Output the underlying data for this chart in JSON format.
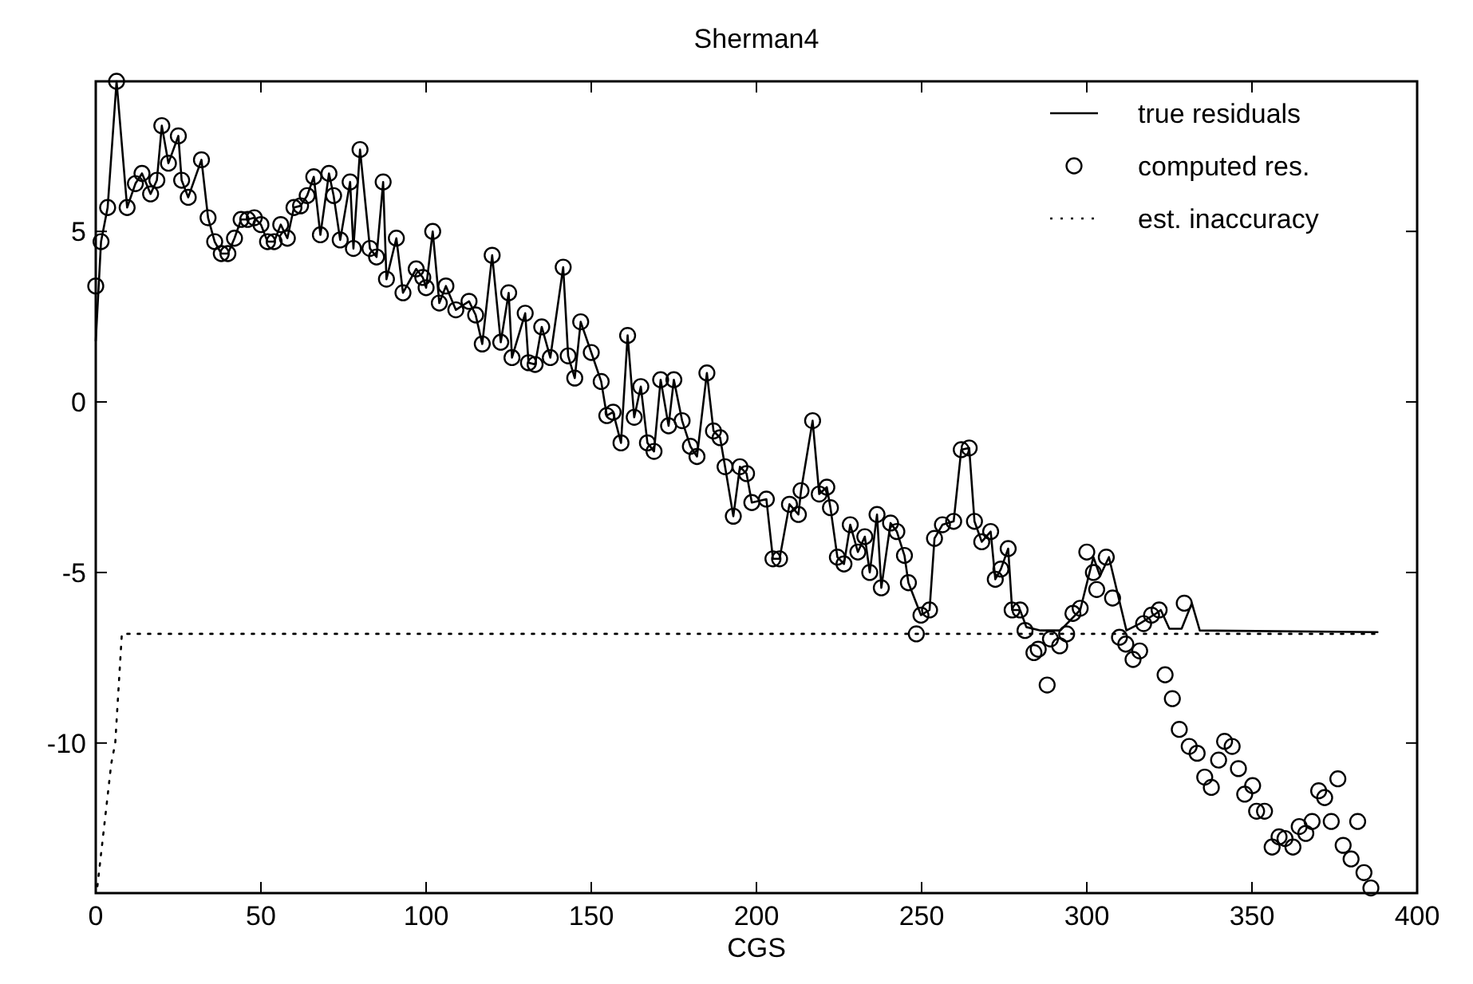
{
  "chart_data": {
    "type": "line",
    "title": "Sherman4",
    "xlabel": "CGS",
    "xlim": [
      0,
      400
    ],
    "ylim": [
      -14.4,
      9.4
    ],
    "xticks": [
      0,
      50,
      100,
      150,
      200,
      250,
      300,
      350,
      400
    ],
    "yticks": [
      -10,
      -5,
      0,
      5
    ],
    "legend": "top right",
    "grid": false,
    "series": [
      {
        "name": "true residuals",
        "type": "line",
        "color": "#000000",
        "line_style": "solid",
        "marker": "none",
        "x": [
          0,
          1.6,
          3.6,
          6.3,
          9.5,
          12,
          14,
          16.6,
          18.5,
          20,
          22,
          25,
          26,
          28,
          32,
          34,
          36,
          38,
          40,
          42,
          44,
          46,
          48,
          50,
          52,
          54,
          56,
          58,
          60,
          62,
          64,
          66,
          68,
          70.6,
          72,
          74,
          77,
          78,
          80,
          83,
          85,
          87,
          88,
          91,
          93,
          97,
          99,
          100,
          102,
          104,
          106,
          109,
          113,
          115,
          117,
          120,
          122.6,
          125,
          126,
          130,
          131,
          133,
          135,
          137.6,
          141.5,
          143,
          145,
          146.8,
          150,
          153,
          154.7,
          156.6,
          159,
          161,
          163,
          165,
          167,
          169,
          171,
          173.4,
          175,
          177.5,
          180,
          182,
          185,
          187,
          189,
          190.5,
          193,
          195,
          197,
          198.6,
          203,
          205,
          207,
          210,
          212.7,
          213.5,
          217,
          219,
          221.3,
          222.4,
          224.5,
          226.5,
          228.4,
          230.7,
          232.8,
          234.3,
          236.5,
          237.8,
          240.6,
          242.5,
          244.8,
          246,
          249.8,
          252.4,
          253.9,
          256.3,
          259.7,
          262,
          264.4,
          266,
          268.2,
          270.9,
          272.3,
          274,
          276.2,
          277.4,
          279.8,
          281.7,
          286,
          292,
          298,
          302,
          304,
          306.7,
          312,
          316,
          321,
          322.4,
          325,
          328.7,
          331.8,
          334.2,
          388
        ],
        "values": [
          1.8,
          4.7,
          5.7,
          9.4,
          5.7,
          6.4,
          6.7,
          6.1,
          6.5,
          8.1,
          7.0,
          7.8,
          6.5,
          6.0,
          7.1,
          5.4,
          4.7,
          4.35,
          4.35,
          4.8,
          5.35,
          5.35,
          5.4,
          5.2,
          4.7,
          4.7,
          5.2,
          4.8,
          5.7,
          5.75,
          6.05,
          6.6,
          4.9,
          6.7,
          6.05,
          4.75,
          6.45,
          4.5,
          7.4,
          4.5,
          4.25,
          6.45,
          3.6,
          4.8,
          3.2,
          3.9,
          3.65,
          3.35,
          5.0,
          2.9,
          3.4,
          2.7,
          2.95,
          2.55,
          1.7,
          4.3,
          1.75,
          3.2,
          1.3,
          2.6,
          1.15,
          1.1,
          2.2,
          1.3,
          3.95,
          1.35,
          0.7,
          2.35,
          1.45,
          0.6,
          -0.4,
          -0.3,
          -1.2,
          1.95,
          -0.45,
          0.45,
          -1.2,
          -1.45,
          0.65,
          -0.7,
          0.65,
          -0.55,
          -1.3,
          -1.6,
          0.85,
          -0.85,
          -1.05,
          -1.9,
          -3.35,
          -1.9,
          -2.1,
          -2.95,
          -2.85,
          -4.6,
          -4.6,
          -3.0,
          -3.3,
          -2.6,
          -0.55,
          -2.7,
          -2.5,
          -3.1,
          -4.55,
          -4.75,
          -3.6,
          -4.4,
          -3.95,
          -5.0,
          -3.3,
          -5.45,
          -3.55,
          -3.8,
          -4.5,
          -5.3,
          -6.25,
          -6.1,
          -4.0,
          -3.6,
          -3.5,
          -1.4,
          -1.35,
          -3.5,
          -4.1,
          -3.8,
          -5.2,
          -4.9,
          -4.3,
          -6.1,
          -6.1,
          -6.6,
          -6.7,
          -6.7,
          -6.1,
          -4.55,
          -5.1,
          -4.55,
          -6.7,
          -6.5,
          -6.2,
          -6.1,
          -6.65,
          -6.65,
          -5.9,
          -6.7,
          -6.75
        ]
      },
      {
        "name": "computed res.",
        "type": "scatter",
        "color": "#000000",
        "marker": "circle",
        "x": [
          0,
          1.6,
          3.6,
          6.3,
          9.5,
          12,
          14,
          16.6,
          18.5,
          20,
          22,
          25,
          26,
          28,
          32,
          34,
          36,
          38,
          40,
          42,
          44,
          46,
          48,
          50,
          52,
          54,
          56,
          58,
          60,
          62,
          64,
          66,
          68,
          70.6,
          72,
          74,
          77,
          78,
          80,
          83,
          85,
          87,
          88,
          91,
          93,
          97,
          99,
          100,
          102,
          104,
          106,
          109,
          113,
          115,
          117,
          120,
          122.6,
          125,
          126,
          130,
          131,
          133,
          135,
          137.6,
          141.5,
          143,
          145,
          146.8,
          150,
          153,
          154.7,
          156.6,
          159,
          161,
          163,
          165,
          167,
          169,
          171,
          173.4,
          175,
          177.5,
          180,
          182,
          185,
          187,
          189,
          190.5,
          193,
          195,
          197,
          198.6,
          203,
          205,
          207,
          210,
          212.7,
          213.5,
          217,
          219,
          221.3,
          222.4,
          224.5,
          226.5,
          228.4,
          230.7,
          232.8,
          234.3,
          236.5,
          237.8,
          240.6,
          242.5,
          244.8,
          246,
          248.4,
          249.8,
          252.4,
          253.9,
          256.3,
          259.7,
          262,
          264.4,
          266,
          268.2,
          270.9,
          272.3,
          274,
          276.2,
          277.4,
          279.8,
          281.3,
          284,
          285.3,
          288,
          289,
          291.8,
          293.9,
          295.8,
          298,
          300,
          302,
          303,
          305.9,
          307.8,
          309.9,
          311.8,
          314,
          316,
          317.2,
          319.6,
          321.9,
          323.7,
          325.9,
          328,
          329.5,
          331,
          333.4,
          335.7,
          337.7,
          339.9,
          341.7,
          344,
          345.9,
          347.8,
          350.2,
          351.4,
          353.8,
          356.1,
          358.2,
          360,
          362.4,
          364.3,
          366.3,
          368.2,
          370.2,
          372,
          374,
          376,
          377.6,
          380,
          382,
          383.9,
          386
        ],
        "values": [
          3.4,
          4.7,
          5.7,
          9.4,
          5.7,
          6.4,
          6.7,
          6.1,
          6.5,
          8.1,
          7.0,
          7.8,
          6.5,
          6.0,
          7.1,
          5.4,
          4.7,
          4.35,
          4.35,
          4.8,
          5.35,
          5.35,
          5.4,
          5.2,
          4.7,
          4.7,
          5.2,
          4.8,
          5.7,
          5.75,
          6.05,
          6.6,
          4.9,
          6.7,
          6.05,
          4.75,
          6.45,
          4.5,
          7.4,
          4.5,
          4.25,
          6.45,
          3.6,
          4.8,
          3.2,
          3.9,
          3.65,
          3.35,
          5.0,
          2.9,
          3.4,
          2.7,
          2.95,
          2.55,
          1.7,
          4.3,
          1.75,
          3.2,
          1.3,
          2.6,
          1.15,
          1.1,
          2.2,
          1.3,
          3.95,
          1.35,
          0.7,
          2.35,
          1.45,
          0.6,
          -0.4,
          -0.3,
          -1.2,
          1.95,
          -0.45,
          0.45,
          -1.2,
          -1.45,
          0.65,
          -0.7,
          0.65,
          -0.55,
          -1.3,
          -1.6,
          0.85,
          -0.85,
          -1.05,
          -1.9,
          -3.35,
          -1.9,
          -2.1,
          -2.95,
          -2.85,
          -4.6,
          -4.6,
          -3.0,
          -3.3,
          -2.6,
          -0.55,
          -2.7,
          -2.5,
          -3.1,
          -4.55,
          -4.75,
          -3.6,
          -4.4,
          -3.95,
          -5.0,
          -3.3,
          -5.45,
          -3.55,
          -3.8,
          -4.5,
          -5.3,
          -6.8,
          -6.25,
          -6.1,
          -4.0,
          -3.6,
          -3.5,
          -1.4,
          -1.35,
          -3.5,
          -4.1,
          -3.8,
          -5.2,
          -4.9,
          -4.3,
          -6.1,
          -6.1,
          -6.7,
          -7.35,
          -7.25,
          -8.3,
          -6.95,
          -7.15,
          -6.8,
          -6.2,
          -6.05,
          -4.4,
          -5.0,
          -5.5,
          -4.55,
          -5.75,
          -6.9,
          -7.1,
          -7.55,
          -7.3,
          -6.5,
          -6.25,
          -6.1,
          -8.0,
          -8.7,
          -9.6,
          -5.9,
          -10.1,
          -10.3,
          -11.0,
          -11.3,
          -10.5,
          -9.95,
          -10.1,
          -10.75,
          -11.5,
          -11.25,
          -12.0,
          -12.0,
          -13.05,
          -12.75,
          -12.8,
          -13.05,
          -12.45,
          -12.65,
          -12.3,
          -11.4,
          -11.6,
          -12.3,
          -11.05,
          -13.0,
          -13.4,
          -12.3,
          -13.8,
          -14.25
        ]
      },
      {
        "name": "est. inaccuracy",
        "type": "line",
        "color": "#000000",
        "line_style": "dotted",
        "marker": "none",
        "x": [
          0.5,
          4.7,
          5.9,
          7.9,
          388
        ],
        "values": [
          -14.2,
          -10.6,
          -10.0,
          -6.8,
          -6.8
        ]
      }
    ]
  }
}
